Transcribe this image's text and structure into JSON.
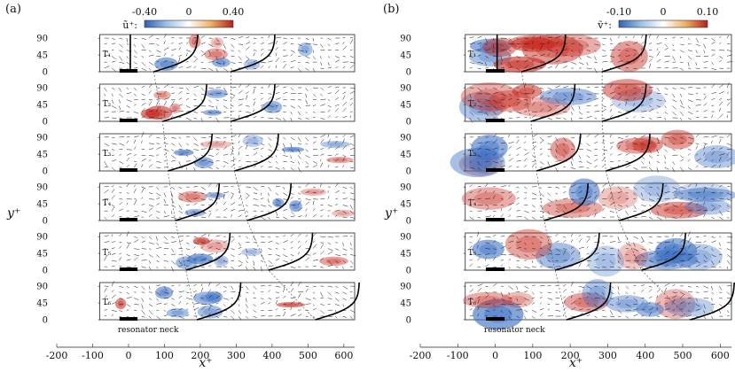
{
  "figure": {
    "x_axis_label": "x⁺",
    "y_axis_label": "y⁺",
    "annotation_resonator": "resonator neck",
    "colors": {
      "negative": "#3a6fc4",
      "positive": "#c8281e",
      "neutral": "#ffffff",
      "vector": "#1a1a1a",
      "profile": "#000000",
      "neck": "#000000"
    }
  },
  "chart_data": [
    {
      "panel_label": "(a)",
      "type": "heatmap",
      "quantity": "ũ⁺",
      "colorbar_label": "ũ⁺:",
      "colorbar_ticks": [
        "-0.40",
        "0",
        "0.40"
      ],
      "colorbar_range": [
        -0.4,
        0.4
      ],
      "xlim": [
        -200,
        630
      ],
      "x_ticks": [
        "-200",
        "-100",
        "0",
        "100",
        "200",
        "300",
        "400",
        "500",
        "600"
      ],
      "x_tick_values": [
        -200,
        -100,
        0,
        100,
        200,
        300,
        400,
        500,
        600
      ],
      "ylim": [
        0,
        100
      ],
      "y_ticks": [
        "0",
        "45",
        "90"
      ],
      "y_tick_values": [
        0,
        45,
        90
      ],
      "phases": [
        "T₁",
        "T₂",
        "T₃",
        "T₄",
        "T₅",
        "T₆"
      ],
      "field_x_range": [
        -80,
        630
      ],
      "neck_extent": [
        -25,
        25
      ],
      "profile_offsets": [
        [
          70,
          285
        ],
        [
          95,
          285
        ],
        [
          110,
          295
        ],
        [
          130,
          330
        ],
        [
          160,
          390
        ],
        [
          190,
          520
        ]
      ]
    },
    {
      "panel_label": "(b)",
      "type": "heatmap",
      "quantity": "ṽ⁺",
      "colorbar_label": "ṽ⁺:",
      "colorbar_ticks": [
        "-0.10",
        "0",
        "0.10"
      ],
      "colorbar_range": [
        -0.1,
        0.1
      ],
      "xlim": [
        -200,
        630
      ],
      "x_ticks": [
        "-200",
        "-100",
        "0",
        "100",
        "200",
        "300",
        "400",
        "500",
        "600"
      ],
      "x_tick_values": [
        -200,
        -100,
        0,
        100,
        200,
        300,
        400,
        500,
        600
      ],
      "ylim": [
        0,
        100
      ],
      "y_ticks": [
        "0",
        "45",
        "90"
      ],
      "y_tick_values": [
        0,
        45,
        90
      ],
      "phases": [
        "T₁",
        "T₂",
        "T₃",
        "T₄",
        "T₅",
        "T₆"
      ],
      "field_x_range": [
        -80,
        630
      ],
      "neck_extent": [
        -25,
        25
      ],
      "profile_offsets": [
        [
          70,
          285
        ],
        [
          95,
          285
        ],
        [
          110,
          295
        ],
        [
          130,
          330
        ],
        [
          160,
          390
        ],
        [
          190,
          520
        ]
      ]
    }
  ]
}
